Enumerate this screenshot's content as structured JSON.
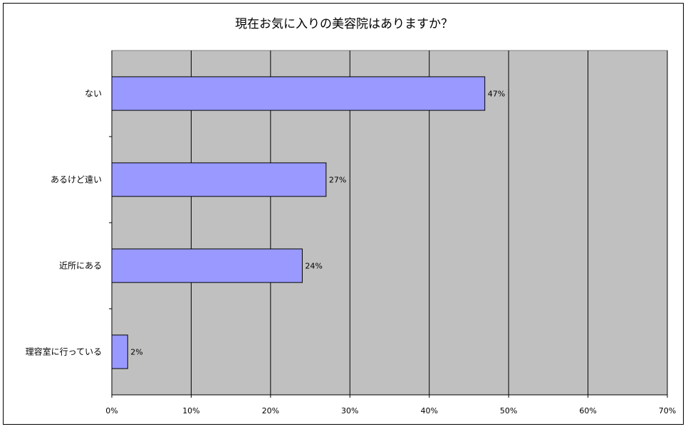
{
  "chart_data": {
    "type": "bar",
    "orientation": "horizontal",
    "title": "現在お気に入りの美容院はありますか？",
    "categories": [
      "ない",
      "あるけど遠い",
      "近所にある",
      "理容室に行っている"
    ],
    "values": [
      47,
      27,
      24,
      2
    ],
    "data_labels": [
      "47%",
      "27%",
      "24%",
      "2%"
    ],
    "xlim": [
      0,
      70
    ],
    "x_ticks": [
      0,
      10,
      20,
      30,
      40,
      50,
      60,
      70
    ],
    "x_tick_labels": [
      "0%",
      "10%",
      "20%",
      "30%",
      "40%",
      "50%",
      "60%",
      "70%"
    ],
    "xlabel": "",
    "ylabel": "",
    "grid": true,
    "legend": "none",
    "colors": {
      "bar_fill": "#9999ff",
      "bar_stroke": "#000000",
      "plot_background": "#c0c0c0",
      "gridline": "#000000"
    }
  }
}
